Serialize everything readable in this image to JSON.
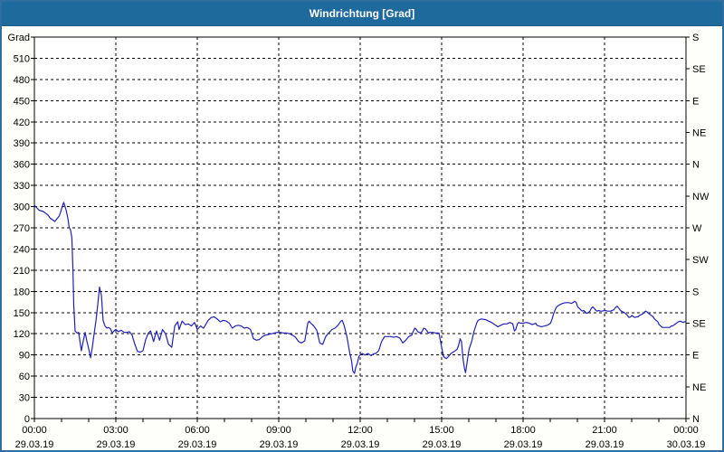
{
  "window": {
    "title": "Windrichtung [Grad]"
  },
  "colors": {
    "titlebar": "#1F6A9D",
    "titlebar_border": "#155A86",
    "window_border": "#2E6F9F",
    "background": "#FEFEFA",
    "plot_background": "#FFFFFF",
    "line": "#2020B8",
    "grid": "#000000",
    "text": "#000000",
    "title_text": "#FFFFFF"
  },
  "chart_data": {
    "type": "line",
    "title": "Windrichtung [Grad]",
    "grid": true,
    "legend_position": "none",
    "x_axis": {
      "range_hours": [
        0,
        24
      ],
      "minor_tick_hours": 1,
      "grid_step_hours": 3,
      "tick_labels": [
        {
          "hour": 0,
          "time": "00:00",
          "date": "29.03.19"
        },
        {
          "hour": 3,
          "time": "03:00",
          "date": "29.03.19"
        },
        {
          "hour": 6,
          "time": "06:00",
          "date": "29.03.19"
        },
        {
          "hour": 9,
          "time": "09:00",
          "date": "29.03.19"
        },
        {
          "hour": 12,
          "time": "12:00",
          "date": "29.03.19"
        },
        {
          "hour": 15,
          "time": "15:00",
          "date": "29.03.19"
        },
        {
          "hour": 18,
          "time": "18:00",
          "date": "29.03.19"
        },
        {
          "hour": 21,
          "time": "21:00",
          "date": "29.03.19"
        },
        {
          "hour": 24,
          "time": "00:00",
          "date": "30.03.19"
        }
      ]
    },
    "y_axis_left": {
      "unit": "Grad",
      "min": 0,
      "max": 540,
      "label_step": 30,
      "grid_step": 30
    },
    "y_axis_right": {
      "step": 45,
      "labels_bottom_to_top": [
        "N",
        "NE",
        "E",
        "SE",
        "S",
        "SW",
        "W",
        "NW",
        "N",
        "NE",
        "E",
        "SE",
        "S"
      ]
    },
    "series": [
      {
        "name": "Windrichtung",
        "unit": "Grad",
        "points": [
          [
            0,
            302
          ],
          [
            0.17,
            295
          ],
          [
            0.33,
            293
          ],
          [
            0.5,
            288
          ],
          [
            0.58,
            284
          ],
          [
            0.75,
            279
          ],
          [
            0.92,
            287
          ],
          [
            1.08,
            306
          ],
          [
            1.17,
            295
          ],
          [
            1.23,
            284
          ],
          [
            1.28,
            271
          ],
          [
            1.33,
            267
          ],
          [
            1.38,
            256
          ],
          [
            1.42,
            210
          ],
          [
            1.45,
            160
          ],
          [
            1.5,
            124
          ],
          [
            1.57,
            121
          ],
          [
            1.63,
            122
          ],
          [
            1.73,
            96
          ],
          [
            1.8,
            110
          ],
          [
            1.87,
            122
          ],
          [
            1.93,
            110
          ],
          [
            2,
            99
          ],
          [
            2.07,
            86
          ],
          [
            2.13,
            100
          ],
          [
            2.2,
            120
          ],
          [
            2.27,
            139
          ],
          [
            2.33,
            160
          ],
          [
            2.4,
            186
          ],
          [
            2.47,
            174
          ],
          [
            2.53,
            139
          ],
          [
            2.6,
            131
          ],
          [
            2.67,
            128
          ],
          [
            2.73,
            129
          ],
          [
            2.8,
            127
          ],
          [
            2.87,
            121
          ],
          [
            2.93,
            124
          ],
          [
            3,
            126
          ],
          [
            3.1,
            123
          ],
          [
            3.2,
            125
          ],
          [
            3.3,
            122
          ],
          [
            3.4,
            122
          ],
          [
            3.5,
            123
          ],
          [
            3.6,
            118
          ],
          [
            3.7,
            105
          ],
          [
            3.8,
            95
          ],
          [
            3.9,
            94
          ],
          [
            4,
            96
          ],
          [
            4.1,
            112
          ],
          [
            4.2,
            121
          ],
          [
            4.28,
            124
          ],
          [
            4.39,
            109
          ],
          [
            4.5,
            124
          ],
          [
            4.61,
            111
          ],
          [
            4.72,
            126
          ],
          [
            4.83,
            120
          ],
          [
            4.94,
            105
          ],
          [
            5.06,
            101
          ],
          [
            5.17,
            131
          ],
          [
            5.28,
            137
          ],
          [
            5.33,
            126
          ],
          [
            5.44,
            138
          ],
          [
            5.56,
            133
          ],
          [
            5.67,
            134
          ],
          [
            5.78,
            131
          ],
          [
            5.9,
            136
          ],
          [
            6,
            126
          ],
          [
            6.12,
            131
          ],
          [
            6.23,
            128
          ],
          [
            6.4,
            139
          ],
          [
            6.51,
            143
          ],
          [
            6.62,
            144
          ],
          [
            6.73,
            141
          ],
          [
            6.84,
            137
          ],
          [
            6.96,
            139
          ],
          [
            7.07,
            138
          ],
          [
            7.18,
            135
          ],
          [
            7.29,
            128
          ],
          [
            7.4,
            131
          ],
          [
            7.51,
            132
          ],
          [
            7.62,
            131
          ],
          [
            7.73,
            128
          ],
          [
            7.84,
            129
          ],
          [
            7.96,
            126
          ],
          [
            8.07,
            113
          ],
          [
            8.18,
            111
          ],
          [
            8.29,
            112
          ],
          [
            8.4,
            116
          ],
          [
            8.51,
            118
          ],
          [
            8.62,
            119
          ],
          [
            8.73,
            120
          ],
          [
            8.84,
            121
          ],
          [
            8.96,
            122
          ],
          [
            9.07,
            122
          ],
          [
            9.18,
            121
          ],
          [
            9.29,
            121
          ],
          [
            9.4,
            120
          ],
          [
            9.51,
            118
          ],
          [
            9.62,
            115
          ],
          [
            9.73,
            109
          ],
          [
            9.84,
            107
          ],
          [
            9.96,
            110
          ],
          [
            10.07,
            135
          ],
          [
            10.12,
            138
          ],
          [
            10.18,
            135
          ],
          [
            10.29,
            131
          ],
          [
            10.4,
            125
          ],
          [
            10.51,
            107
          ],
          [
            10.62,
            105
          ],
          [
            10.73,
            116
          ],
          [
            10.84,
            121
          ],
          [
            10.96,
            126
          ],
          [
            11.07,
            128
          ],
          [
            11.18,
            132
          ],
          [
            11.29,
            138
          ],
          [
            11.34,
            139
          ],
          [
            11.4,
            133
          ],
          [
            11.51,
            116
          ],
          [
            11.62,
            92
          ],
          [
            11.68,
            82
          ],
          [
            11.73,
            67
          ],
          [
            11.79,
            64
          ],
          [
            11.84,
            73
          ],
          [
            11.9,
            79
          ],
          [
            11.95,
            88
          ],
          [
            12.07,
            92
          ],
          [
            12.18,
            90
          ],
          [
            12.29,
            92
          ],
          [
            12.4,
            89
          ],
          [
            12.51,
            92
          ],
          [
            12.57,
            92
          ],
          [
            12.68,
            96
          ],
          [
            12.79,
            109
          ],
          [
            12.9,
            116
          ],
          [
            13.01,
            116
          ],
          [
            13.12,
            116
          ],
          [
            13.23,
            115
          ],
          [
            13.34,
            116
          ],
          [
            13.46,
            114
          ],
          [
            13.57,
            107
          ],
          [
            13.68,
            111
          ],
          [
            13.79,
            116
          ],
          [
            13.9,
            118
          ],
          [
            13.96,
            124
          ],
          [
            14.01,
            128
          ],
          [
            14.07,
            126
          ],
          [
            14.12,
            123
          ],
          [
            14.23,
            121
          ],
          [
            14.29,
            124
          ],
          [
            14.34,
            128
          ],
          [
            14.4,
            127
          ],
          [
            14.46,
            124
          ],
          [
            14.51,
            121
          ],
          [
            14.57,
            122
          ],
          [
            14.68,
            122
          ],
          [
            14.79,
            121
          ],
          [
            14.9,
            121
          ],
          [
            15.01,
            99
          ],
          [
            15.07,
            88
          ],
          [
            15.12,
            86
          ],
          [
            15.18,
            85
          ],
          [
            15.23,
            87
          ],
          [
            15.34,
            92
          ],
          [
            15.46,
            95
          ],
          [
            15.57,
            98
          ],
          [
            15.62,
            103
          ],
          [
            15.68,
            113
          ],
          [
            15.73,
            109
          ],
          [
            15.79,
            84
          ],
          [
            15.84,
            71
          ],
          [
            15.88,
            65
          ],
          [
            15.92,
            75
          ],
          [
            15.96,
            86
          ],
          [
            16.01,
            98
          ],
          [
            16.07,
            105
          ],
          [
            16.12,
            111
          ],
          [
            16.18,
            122
          ],
          [
            16.23,
            128
          ],
          [
            16.29,
            135
          ],
          [
            16.34,
            139
          ],
          [
            16.46,
            141
          ],
          [
            16.62,
            140
          ],
          [
            16.73,
            138
          ],
          [
            16.84,
            136
          ],
          [
            16.96,
            133
          ],
          [
            17.07,
            130
          ],
          [
            17.18,
            132
          ],
          [
            17.29,
            134
          ],
          [
            17.4,
            134
          ],
          [
            17.51,
            136
          ],
          [
            17.62,
            134
          ],
          [
            17.68,
            124
          ],
          [
            17.73,
            126
          ],
          [
            17.79,
            134
          ],
          [
            17.84,
            136
          ],
          [
            17.9,
            135
          ],
          [
            18.01,
            135
          ],
          [
            18.12,
            136
          ],
          [
            18.23,
            135
          ],
          [
            18.34,
            133
          ],
          [
            18.46,
            135
          ],
          [
            18.51,
            132
          ],
          [
            18.57,
            131
          ],
          [
            18.68,
            130
          ],
          [
            18.79,
            131
          ],
          [
            18.9,
            132
          ],
          [
            19.01,
            135
          ],
          [
            19.07,
            141
          ],
          [
            19.12,
            148
          ],
          [
            19.18,
            154
          ],
          [
            19.23,
            158
          ],
          [
            19.34,
            161
          ],
          [
            19.46,
            163
          ],
          [
            19.57,
            164
          ],
          [
            19.68,
            164
          ],
          [
            19.79,
            163
          ],
          [
            19.9,
            166
          ],
          [
            19.96,
            164
          ],
          [
            20.01,
            158
          ],
          [
            20.07,
            156
          ],
          [
            20.12,
            154
          ],
          [
            20.18,
            152
          ],
          [
            20.23,
            153
          ],
          [
            20.29,
            151
          ],
          [
            20.34,
            149
          ],
          [
            20.4,
            150
          ],
          [
            20.46,
            152
          ],
          [
            20.51,
            156
          ],
          [
            20.57,
            158
          ],
          [
            20.62,
            156
          ],
          [
            20.68,
            153
          ],
          [
            20.73,
            152
          ],
          [
            20.79,
            153
          ],
          [
            20.84,
            152
          ],
          [
            20.9,
            152
          ],
          [
            21.01,
            153
          ],
          [
            21.12,
            152
          ],
          [
            21.23,
            152
          ],
          [
            21.34,
            154
          ],
          [
            21.4,
            157
          ],
          [
            21.46,
            159
          ],
          [
            21.51,
            157
          ],
          [
            21.57,
            154
          ],
          [
            21.62,
            152
          ],
          [
            21.68,
            151
          ],
          [
            21.73,
            150
          ],
          [
            21.79,
            148
          ],
          [
            21.84,
            146
          ],
          [
            21.9,
            143
          ],
          [
            21.96,
            144
          ],
          [
            22.01,
            146
          ],
          [
            22.07,
            144
          ],
          [
            22.12,
            143
          ],
          [
            22.18,
            144
          ],
          [
            22.23,
            144
          ],
          [
            22.29,
            146
          ],
          [
            22.34,
            147
          ],
          [
            22.4,
            148
          ],
          [
            22.46,
            150
          ],
          [
            22.51,
            152
          ],
          [
            22.57,
            151
          ],
          [
            22.62,
            149
          ],
          [
            22.68,
            147
          ],
          [
            22.73,
            146
          ],
          [
            22.79,
            144
          ],
          [
            22.84,
            141
          ],
          [
            22.9,
            139
          ],
          [
            22.96,
            137
          ],
          [
            23.01,
            133
          ],
          [
            23.07,
            131
          ],
          [
            23.12,
            129
          ],
          [
            23.18,
            129
          ],
          [
            23.23,
            129
          ],
          [
            23.29,
            129
          ],
          [
            23.34,
            129
          ],
          [
            23.4,
            129
          ],
          [
            23.46,
            131
          ],
          [
            23.51,
            131
          ],
          [
            23.57,
            133
          ],
          [
            23.62,
            134
          ],
          [
            23.68,
            136
          ],
          [
            23.73,
            137
          ],
          [
            23.79,
            138
          ],
          [
            23.84,
            137
          ],
          [
            23.9,
            136
          ],
          [
            23.95,
            137
          ],
          [
            24,
            137
          ]
        ]
      }
    ]
  }
}
